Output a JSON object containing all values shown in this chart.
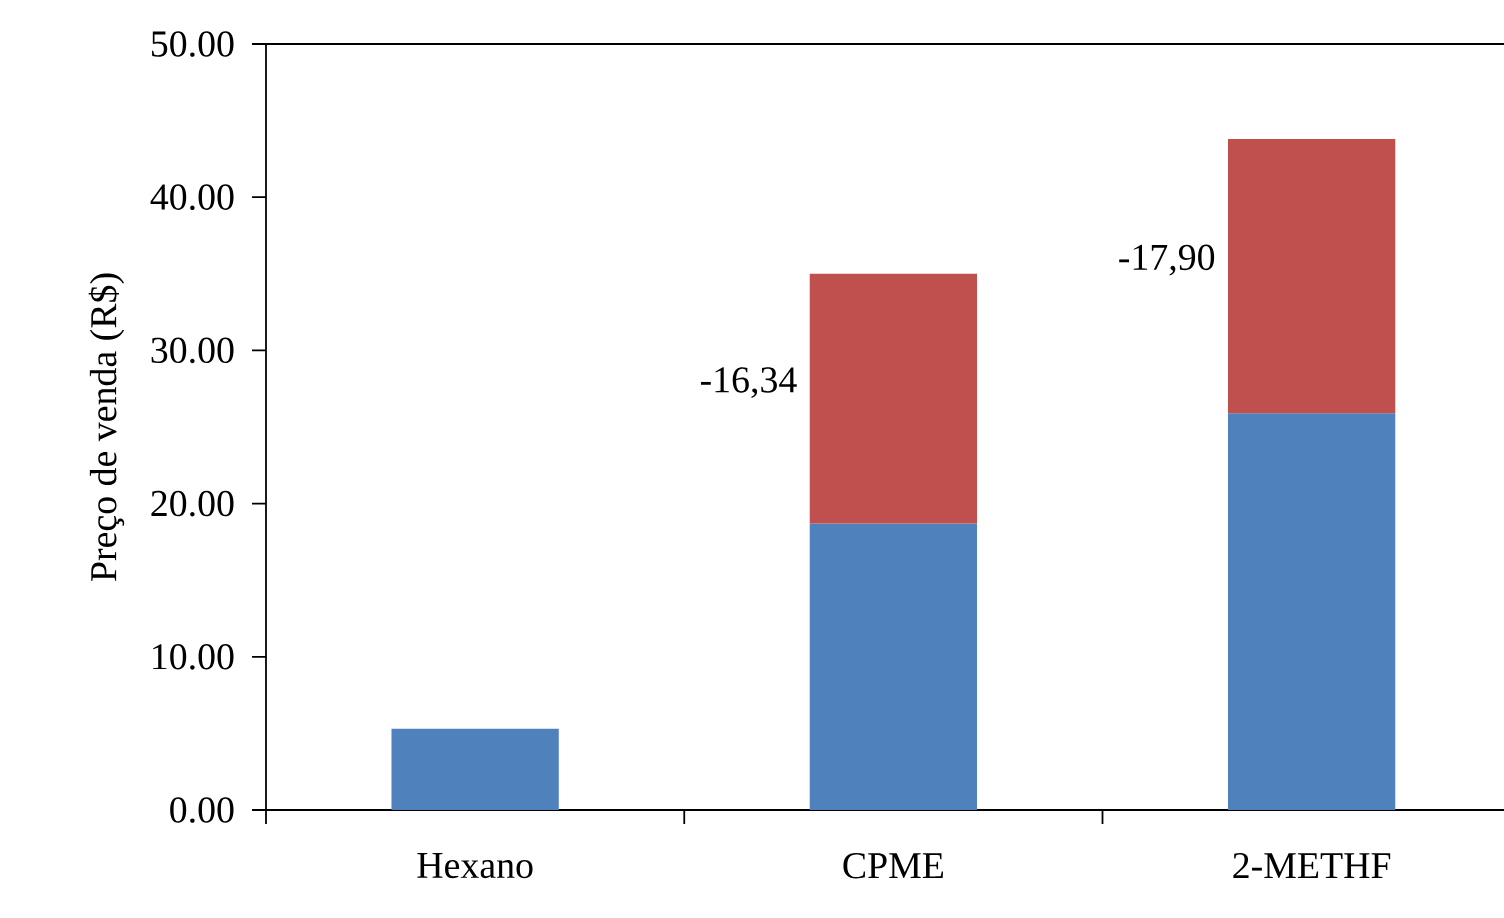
{
  "chart_data": {
    "type": "bar",
    "stacked": true,
    "ylabel": "Preço de venda (R$)",
    "categories": [
      "Hexano",
      "CPME",
      "2-METHF"
    ],
    "series": [
      {
        "color": "#4f81bd",
        "values": [
          5.3,
          18.7,
          25.9
        ]
      },
      {
        "color": "#c0504d",
        "values": [
          null,
          16.3,
          17.9
        ]
      }
    ],
    "ylim": [
      0,
      50
    ],
    "yticks": [
      {
        "value": 0,
        "label": "0.00"
      },
      {
        "value": 10,
        "label": "10.00"
      },
      {
        "value": 20,
        "label": "20.00"
      },
      {
        "value": 30,
        "label": "30.00"
      },
      {
        "value": 40,
        "label": "40.00"
      },
      {
        "value": 50,
        "label": "50.00"
      }
    ],
    "annotations": [
      "-16,34",
      "-17,90"
    ],
    "grid": false
  }
}
